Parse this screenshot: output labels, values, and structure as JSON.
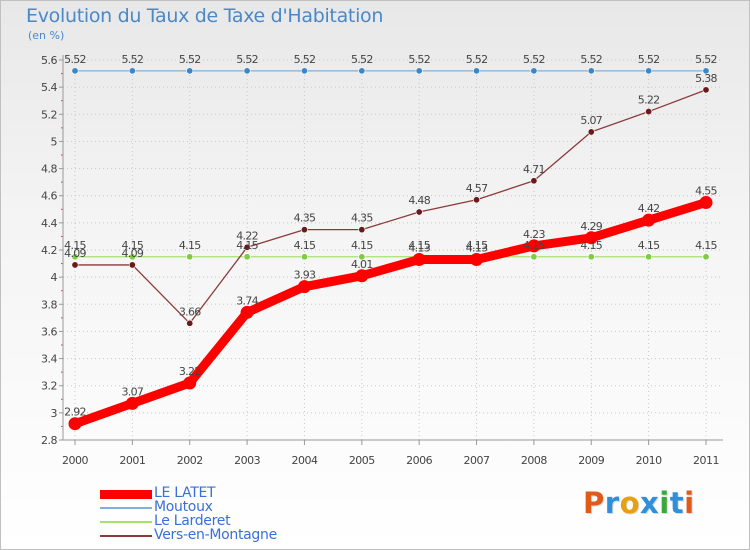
{
  "chart_data": {
    "type": "line",
    "title": "Evolution du Taux de Taxe d'Habitation",
    "subtitle": "(en %)",
    "xlabel": "",
    "ylabel": "",
    "x": [
      "2000",
      "2001",
      "2002",
      "2003",
      "2004",
      "2005",
      "2006",
      "2007",
      "2008",
      "2009",
      "2010",
      "2011"
    ],
    "ylim": [
      2.8,
      5.6
    ],
    "yticks": [
      "2.8",
      "3",
      "3.2",
      "3.4",
      "3.6",
      "3.8",
      "4",
      "4.2",
      "4.4",
      "4.6",
      "4.8",
      "5",
      "5.2",
      "5.4",
      "5.6"
    ],
    "grid": "both-dotted",
    "legend_position": "bottom-left",
    "series": [
      {
        "name": "LE LATET",
        "color": "#ff0000",
        "marker_color": "#ff0000",
        "weight": "heavy",
        "values": [
          2.92,
          3.07,
          3.22,
          3.74,
          3.93,
          4.01,
          4.13,
          4.13,
          4.23,
          4.29,
          4.42,
          4.55
        ],
        "labels": [
          "2.92",
          "3.07",
          "3.22",
          "3.74",
          "3.93",
          "4.01",
          "4.13",
          "4.13",
          "4.23",
          "4.29",
          "4.42",
          "4.55"
        ]
      },
      {
        "name": "Moutoux",
        "color": "#7fb0dc",
        "marker_color": "#3a87c8",
        "weight": "thin",
        "values": [
          5.52,
          5.52,
          5.52,
          5.52,
          5.52,
          5.52,
          5.52,
          5.52,
          5.52,
          5.52,
          5.52,
          5.52
        ],
        "labels": [
          "5.52",
          "5.52",
          "5.52",
          "5.52",
          "5.52",
          "5.52",
          "5.52",
          "5.52",
          "5.52",
          "5.52",
          "5.52",
          "5.52"
        ]
      },
      {
        "name": "Le Larderet",
        "color": "#a8e070",
        "marker_color": "#80cc40",
        "weight": "thin",
        "values": [
          4.15,
          4.15,
          4.15,
          4.15,
          4.15,
          4.15,
          4.15,
          4.15,
          4.15,
          4.15,
          4.15,
          4.15
        ],
        "labels": [
          "4.15",
          "4.15",
          "4.15",
          "4.15",
          "4.15",
          "4.15",
          "4.15",
          "4.15",
          "4.15",
          "4.15",
          "4.15",
          "4.15"
        ]
      },
      {
        "name": "Vers-en-Montagne",
        "color": "#8b3a3a",
        "marker_color": "#6b1a1a",
        "weight": "thin",
        "values": [
          4.09,
          4.09,
          3.66,
          4.22,
          4.35,
          4.35,
          4.48,
          4.57,
          4.71,
          5.07,
          5.22,
          5.38
        ],
        "labels": [
          "4.09",
          "4.09",
          "3.66",
          "4.22",
          "4.35",
          "4.35",
          "4.48",
          "4.57",
          "4.71",
          "5.07",
          "5.22",
          "5.38"
        ]
      }
    ]
  },
  "logo": {
    "text": "Proxiti",
    "colors": [
      "#e05a1a",
      "#2f8fd8",
      "#e8a010",
      "#2f8fd8",
      "#3aa83a",
      "#2f8fd8",
      "#e05a1a"
    ]
  }
}
